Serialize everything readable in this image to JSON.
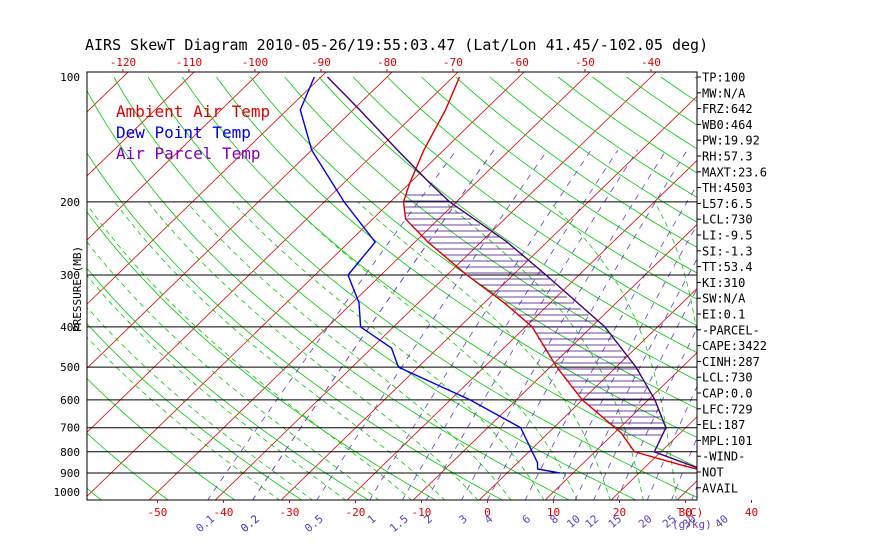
{
  "title": "AIRS SkewT Diagram 2010-05-26/19:55:03.47 (Lat/Lon 41.45/-102.05 deg)",
  "legend": [
    {
      "label": "Ambient Air Temp",
      "color": "#e00000"
    },
    {
      "label": "Dew Point Temp",
      "color": "#0000ee"
    },
    {
      "label": "Air Parcel Temp",
      "color": "#8000c0"
    }
  ],
  "side_panel": [
    "TP:100",
    "MW:N/A",
    "FRZ:642",
    "WB0:464",
    "PW:19.92",
    "RH:57.3",
    "MAXT:23.6",
    "TH:4503",
    "L57:6.5",
    "LCL:730",
    "LI:-9.5",
    "SI:-1.3",
    "TT:53.4",
    "KI:310",
    "SW:N/A",
    "EI:0.1",
    "-PARCEL-",
    "CAPE:3422",
    "CINH:287",
    "LCL:730",
    "CAP:0.0",
    "LFC:729",
    "EL:187",
    "MPL:101",
    "-WIND-",
    "NOT",
    "AVAIL"
  ],
  "colors": {
    "isotherm": "#e00000",
    "dry_adiabat": "#00cc00",
    "moist_adiabat": "#00cc00",
    "mixing_ratio": "#6040c0",
    "temperature": "#e00000",
    "dewpoint": "#0000ee",
    "parcel": "#400080",
    "cape_hatch": "#400080",
    "pressure_line": "#000000",
    "top_ticks": "#e00000",
    "bottom_ticks": "#e00000",
    "mixing_labels": "#6040c0"
  },
  "chart_data": {
    "type": "skew-t",
    "ylabel": "PRESSURE (MB)",
    "xlabel": "T(C)",
    "mixing_ratio_unit": "g/kg",
    "y_scale": "log",
    "ylim": [
      1000,
      100
    ],
    "y_ticks": [
      100,
      200,
      300,
      400,
      500,
      600,
      700,
      800,
      900,
      1000
    ],
    "pressure_lines": [
      200,
      300,
      400,
      500,
      600,
      700,
      800,
      900
    ],
    "top_ticks": [
      -120,
      -110,
      -100,
      -90,
      -80,
      -70,
      -60,
      -50,
      -40
    ],
    "bottom_ticks": [
      -50,
      -40,
      -30,
      -20,
      -10,
      0,
      10,
      20,
      30,
      40
    ],
    "mixing_ratio_labels": [
      "0.1",
      "0.2",
      "0.2",
      "0.5",
      "1",
      "1.5",
      "2",
      "3",
      "4",
      "6",
      "8",
      "10",
      "12",
      "15",
      "20",
      "25",
      "30",
      "40"
    ],
    "temperature_profile": [
      [
        900,
        31
      ],
      [
        860,
        25
      ],
      [
        800,
        16
      ],
      [
        720,
        11
      ],
      [
        600,
        0
      ],
      [
        500,
        -9
      ],
      [
        400,
        -19
      ],
      [
        350,
        -27
      ],
      [
        300,
        -37
      ],
      [
        250,
        -48
      ],
      [
        220,
        -55
      ],
      [
        200,
        -58
      ],
      [
        180,
        -60
      ],
      [
        150,
        -63
      ],
      [
        120,
        -66
      ],
      [
        100,
        -69
      ]
    ],
    "dewpoint_profile": [
      [
        900,
        8
      ],
      [
        880,
        4
      ],
      [
        850,
        3
      ],
      [
        700,
        -5
      ],
      [
        600,
        -17
      ],
      [
        500,
        -33
      ],
      [
        450,
        -37
      ],
      [
        400,
        -45
      ],
      [
        350,
        -49
      ],
      [
        300,
        -55
      ],
      [
        250,
        -56
      ],
      [
        200,
        -67
      ],
      [
        150,
        -80
      ],
      [
        120,
        -88
      ],
      [
        100,
        -91
      ]
    ],
    "parcel_profile": [
      [
        900,
        31
      ],
      [
        800,
        19
      ],
      [
        700,
        17
      ],
      [
        600,
        11
      ],
      [
        500,
        3
      ],
      [
        400,
        -8
      ],
      [
        300,
        -25
      ],
      [
        250,
        -36
      ],
      [
        200,
        -51
      ],
      [
        180,
        -57
      ],
      [
        150,
        -67
      ],
      [
        120,
        -79
      ],
      [
        100,
        -89
      ]
    ],
    "cape_region": {
      "bottom_hpa": 729,
      "top_hpa": 187
    }
  }
}
